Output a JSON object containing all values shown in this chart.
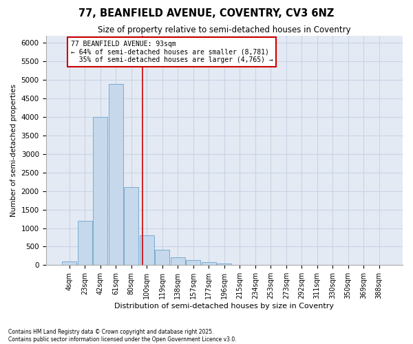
{
  "title_line1": "77, BEANFIELD AVENUE, COVENTRY, CV3 6NZ",
  "title_line2": "Size of property relative to semi-detached houses in Coventry",
  "xlabel": "Distribution of semi-detached houses by size in Coventry",
  "ylabel": "Number of semi-detached properties",
  "categories": [
    "4sqm",
    "23sqm",
    "42sqm",
    "61sqm",
    "80sqm",
    "100sqm",
    "119sqm",
    "138sqm",
    "157sqm",
    "177sqm",
    "196sqm",
    "215sqm",
    "234sqm",
    "253sqm",
    "273sqm",
    "292sqm",
    "311sqm",
    "330sqm",
    "350sqm",
    "369sqm",
    "388sqm"
  ],
  "values": [
    100,
    1200,
    4000,
    4900,
    2100,
    800,
    420,
    220,
    130,
    80,
    50,
    0,
    0,
    0,
    0,
    0,
    0,
    0,
    0,
    0,
    0
  ],
  "bar_color": "#c5d8ec",
  "bar_edge_color": "#7aacd0",
  "property_sqm": 93,
  "property_label": "77 BEANFIELD AVENUE: 93sqm",
  "smaller_pct": "64%",
  "smaller_count": "8,781",
  "larger_pct": "35%",
  "larger_count": "4,765",
  "annotation_box_color": "#cc0000",
  "ylim": [
    0,
    6200
  ],
  "yticks": [
    0,
    500,
    1000,
    1500,
    2000,
    2500,
    3000,
    3500,
    4000,
    4500,
    5000,
    5500,
    6000
  ],
  "grid_color": "#c8d4e4",
  "bg_color": "#e4eaf4",
  "footnote1": "Contains HM Land Registry data © Crown copyright and database right 2025.",
  "footnote2": "Contains public sector information licensed under the Open Government Licence v3.0."
}
